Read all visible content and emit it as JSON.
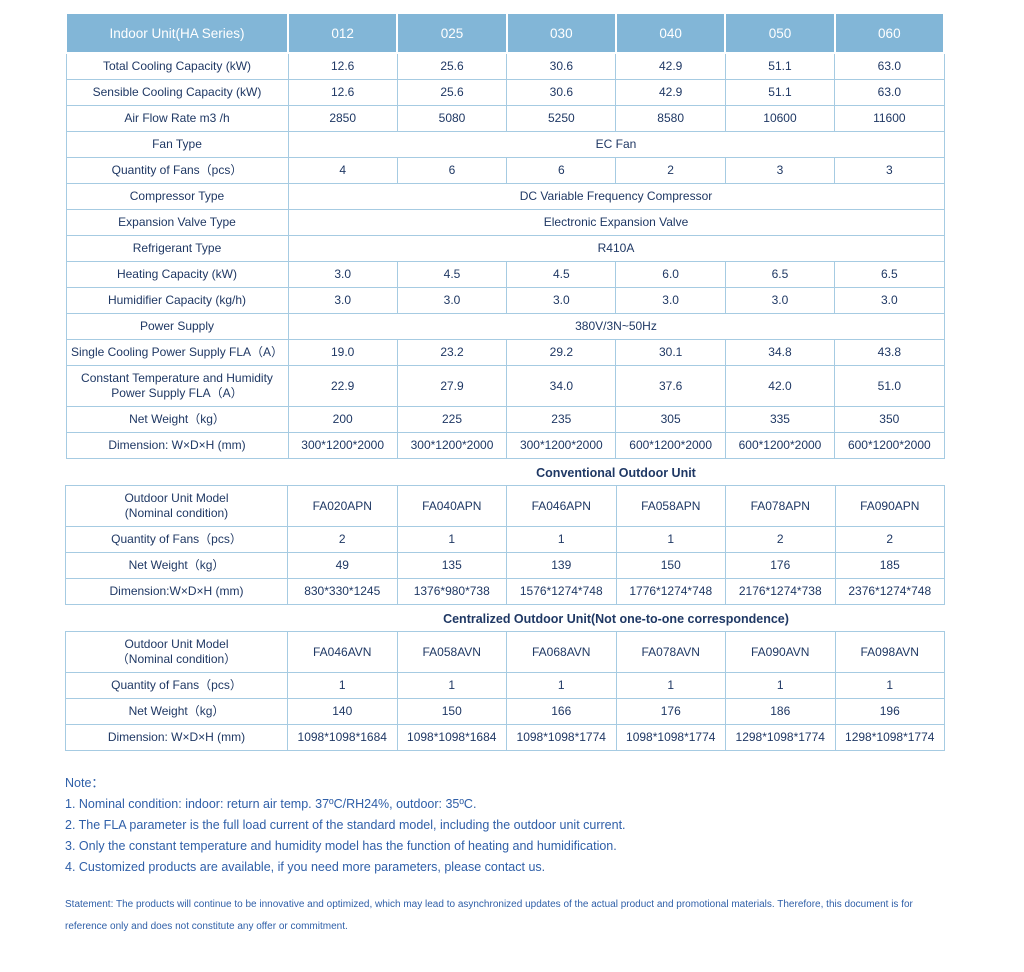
{
  "palette": {
    "header_bg": "#82b6d7",
    "cell_text": "#1f3864",
    "grid_border": "#a6cbe2",
    "note_text": "#2f5fa8"
  },
  "indoor": {
    "title": "Indoor Unit(HA Series)",
    "models": [
      "012",
      "025",
      "030",
      "040",
      "050",
      "060"
    ],
    "rows": [
      {
        "label": "Total Cooling Capacity (kW)",
        "values": [
          "12.6",
          "25.6",
          "30.6",
          "42.9",
          "51.1",
          "63.0"
        ]
      },
      {
        "label": "Sensible Cooling Capacity (kW)",
        "values": [
          "12.6",
          "25.6",
          "30.6",
          "42.9",
          "51.1",
          "63.0"
        ]
      },
      {
        "label": "Air Flow Rate m3 /h",
        "values": [
          "2850",
          "5080",
          "5250",
          "8580",
          "10600",
          "11600"
        ]
      },
      {
        "label": "Fan Type",
        "span": "EC Fan"
      },
      {
        "label": "Quantity of Fans（pcs）",
        "values": [
          "4",
          "6",
          "6",
          "2",
          "3",
          "3"
        ]
      },
      {
        "label": "Compressor Type",
        "span": "DC Variable Frequency Compressor"
      },
      {
        "label": "Expansion Valve Type",
        "span": "Electronic Expansion Valve"
      },
      {
        "label": "Refrigerant Type",
        "span": "R410A"
      },
      {
        "label": "Heating Capacity (kW)",
        "values": [
          "3.0",
          "4.5",
          "4.5",
          "6.0",
          "6.5",
          "6.5"
        ]
      },
      {
        "label": "Humidifier Capacity (kg/h)",
        "values": [
          "3.0",
          "3.0",
          "3.0",
          "3.0",
          "3.0",
          "3.0"
        ]
      },
      {
        "label": "Power Supply",
        "span": "380V/3N~50Hz"
      },
      {
        "label": "Single Cooling Power Supply FLA（A）",
        "values": [
          "19.0",
          "23.2",
          "29.2",
          "30.1",
          "34.8",
          "43.8"
        ]
      },
      {
        "label": "Constant Temperature and Humidity\nPower Supply FLA（A）",
        "values": [
          "22.9",
          "27.9",
          "34.0",
          "37.6",
          "42.0",
          "51.0"
        ]
      },
      {
        "label": "Net Weight（kg）",
        "values": [
          "200",
          "225",
          "235",
          "305",
          "335",
          "350"
        ]
      },
      {
        "label": "Dimension: W×D×H (mm)",
        "values": [
          "300*1200*2000",
          "300*1200*2000",
          "300*1200*2000",
          "600*1200*2000",
          "600*1200*2000",
          "600*1200*2000"
        ]
      }
    ]
  },
  "conventional": {
    "title": "Conventional Outdoor Unit",
    "rows": [
      {
        "label": "Outdoor Unit Model\n(Nominal condition)",
        "values": [
          "FA020APN",
          "FA040APN",
          "FA046APN",
          "FA058APN",
          "FA078APN",
          "FA090APN"
        ]
      },
      {
        "label": "Quantity of Fans（pcs）",
        "values": [
          "2",
          "1",
          "1",
          "1",
          "2",
          "2"
        ]
      },
      {
        "label": "Net Weight（kg）",
        "values": [
          "49",
          "135",
          "139",
          "150",
          "176",
          "185"
        ]
      },
      {
        "label": "Dimension:W×D×H (mm)",
        "values": [
          "830*330*1245",
          "1376*980*738",
          "1576*1274*748",
          "1776*1274*748",
          "2176*1274*738",
          "2376*1274*748"
        ]
      }
    ]
  },
  "centralized": {
    "title": "Centralized Outdoor Unit(Not one-to-one correspondence)",
    "rows": [
      {
        "label": "Outdoor Unit Model\n（Nominal condition）",
        "values": [
          "FA046AVN",
          "FA058AVN",
          "FA068AVN",
          "FA078AVN",
          "FA090AVN",
          "FA098AVN"
        ]
      },
      {
        "label": "Quantity of Fans（pcs）",
        "values": [
          "1",
          "1",
          "1",
          "1",
          "1",
          "1"
        ]
      },
      {
        "label": "Net Weight（kg）",
        "values": [
          "140",
          "150",
          "166",
          "176",
          "186",
          "196"
        ]
      },
      {
        "label": "Dimension: W×D×H (mm)",
        "values": [
          "1098*1098*1684",
          "1098*1098*1684",
          "1098*1098*1774",
          "1098*1098*1774",
          "1298*1098*1774",
          "1298*1098*1774"
        ]
      }
    ]
  },
  "notes": {
    "heading": "Note：",
    "items": [
      "1. Nominal condition: indoor: return air temp. 37ºC/RH24%, outdoor: 35ºC.",
      "2. The FLA parameter is the full load current of the standard model, including the outdoor unit current.",
      "3. Only the constant temperature and humidity model has the function of heating and humidification.",
      "4. Customized products are available, if you need more parameters, please contact us."
    ],
    "statement": "Statement: The products will continue to be innovative and optimized, which may lead to asynchronized updates of the actual product and promotional materials. Therefore, this document is for reference only and does not constitute any offer or commitment."
  }
}
